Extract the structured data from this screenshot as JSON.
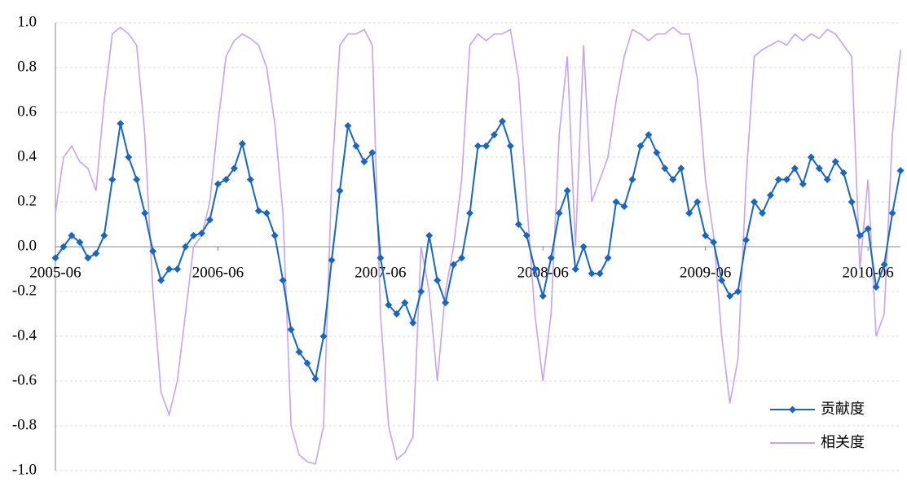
{
  "chart_data": {
    "type": "line",
    "categories": [
      "2005-06",
      null,
      null,
      null,
      null,
      null,
      null,
      null,
      null,
      null,
      null,
      null,
      null,
      null,
      null,
      null,
      null,
      null,
      null,
      null,
      "2006-06",
      null,
      null,
      null,
      null,
      null,
      null,
      null,
      null,
      null,
      null,
      null,
      null,
      null,
      null,
      null,
      null,
      null,
      null,
      null,
      "2007-06",
      null,
      null,
      null,
      null,
      null,
      null,
      null,
      null,
      null,
      null,
      null,
      null,
      null,
      null,
      null,
      null,
      null,
      null,
      null,
      "2008-06",
      null,
      null,
      null,
      null,
      null,
      null,
      null,
      null,
      null,
      null,
      null,
      null,
      null,
      null,
      null,
      null,
      null,
      null,
      null,
      "2009-06",
      null,
      null,
      null,
      null,
      null,
      null,
      null,
      null,
      null,
      null,
      null,
      null,
      null,
      null,
      null,
      null,
      null,
      null,
      null,
      "2010-06",
      null,
      null,
      null,
      null
    ],
    "series": [
      {
        "name": "贡献度",
        "color": "#1766c2",
        "marker": "diamond",
        "values": [
          -0.05,
          0.0,
          0.05,
          0.02,
          -0.05,
          -0.03,
          0.05,
          0.3,
          0.55,
          0.4,
          0.3,
          0.15,
          -0.02,
          -0.15,
          -0.1,
          -0.1,
          0.0,
          0.05,
          0.06,
          0.12,
          0.28,
          0.3,
          0.35,
          0.46,
          0.3,
          0.16,
          0.15,
          0.05,
          -0.15,
          -0.37,
          -0.47,
          -0.52,
          -0.59,
          -0.4,
          -0.06,
          0.25,
          0.54,
          0.45,
          0.38,
          0.42,
          -0.05,
          -0.26,
          -0.3,
          -0.25,
          -0.34,
          -0.2,
          0.05,
          -0.15,
          -0.25,
          -0.08,
          -0.05,
          0.15,
          0.45,
          0.45,
          0.5,
          0.56,
          0.45,
          0.1,
          0.05,
          -0.1,
          -0.22,
          -0.05,
          0.15,
          0.25,
          -0.1,
          0.0,
          -0.12,
          -0.12,
          -0.05,
          0.2,
          0.18,
          0.3,
          0.45,
          0.5,
          0.42,
          0.35,
          0.3,
          0.35,
          0.15,
          0.2,
          0.05,
          0.02,
          -0.15,
          -0.22,
          -0.2,
          0.03,
          0.2,
          0.15,
          0.23,
          0.3,
          0.3,
          0.35,
          0.28,
          0.4,
          0.35,
          0.3,
          0.38,
          0.33,
          0.2,
          0.05,
          0.08,
          -0.18,
          -0.08,
          0.15,
          0.34
        ]
      },
      {
        "name": "相关度",
        "color": "#c7a3ef",
        "values": [
          0.15,
          0.4,
          0.45,
          0.38,
          0.35,
          0.25,
          0.65,
          0.95,
          0.98,
          0.95,
          0.9,
          0.5,
          -0.2,
          -0.65,
          -0.75,
          -0.6,
          -0.3,
          0.0,
          0.05,
          0.2,
          0.55,
          0.85,
          0.92,
          0.95,
          0.93,
          0.9,
          0.8,
          0.55,
          0.15,
          -0.8,
          -0.93,
          -0.96,
          -0.97,
          -0.8,
          0.3,
          0.9,
          0.95,
          0.95,
          0.97,
          0.9,
          -0.3,
          -0.8,
          -0.95,
          -0.92,
          -0.85,
          0.0,
          -0.2,
          -0.6,
          -0.2,
          0.0,
          0.3,
          0.9,
          0.95,
          0.92,
          0.95,
          0.95,
          0.97,
          0.75,
          0.2,
          -0.3,
          -0.6,
          -0.3,
          0.5,
          0.85,
          0.0,
          0.9,
          0.2,
          0.3,
          0.4,
          0.65,
          0.85,
          0.97,
          0.95,
          0.92,
          0.95,
          0.95,
          0.98,
          0.95,
          0.95,
          0.75,
          0.3,
          0.05,
          -0.4,
          -0.7,
          -0.5,
          0.3,
          0.85,
          0.88,
          0.9,
          0.92,
          0.9,
          0.95,
          0.92,
          0.95,
          0.93,
          0.97,
          0.95,
          0.9,
          0.85,
          -0.1,
          0.3,
          -0.4,
          -0.3,
          0.5,
          0.88
        ]
      }
    ],
    "ylim": [
      -1,
      1
    ],
    "yticks": [
      {
        "value": -1,
        "label": "-1.0"
      },
      -0.8,
      -0.6,
      -0.4,
      -0.2,
      {
        "value": 0,
        "label": "0.0"
      },
      0.2,
      0.4,
      0.6,
      0.8,
      {
        "value": 1,
        "label": "1.0"
      }
    ],
    "grid": true,
    "legend": "lower right"
  }
}
